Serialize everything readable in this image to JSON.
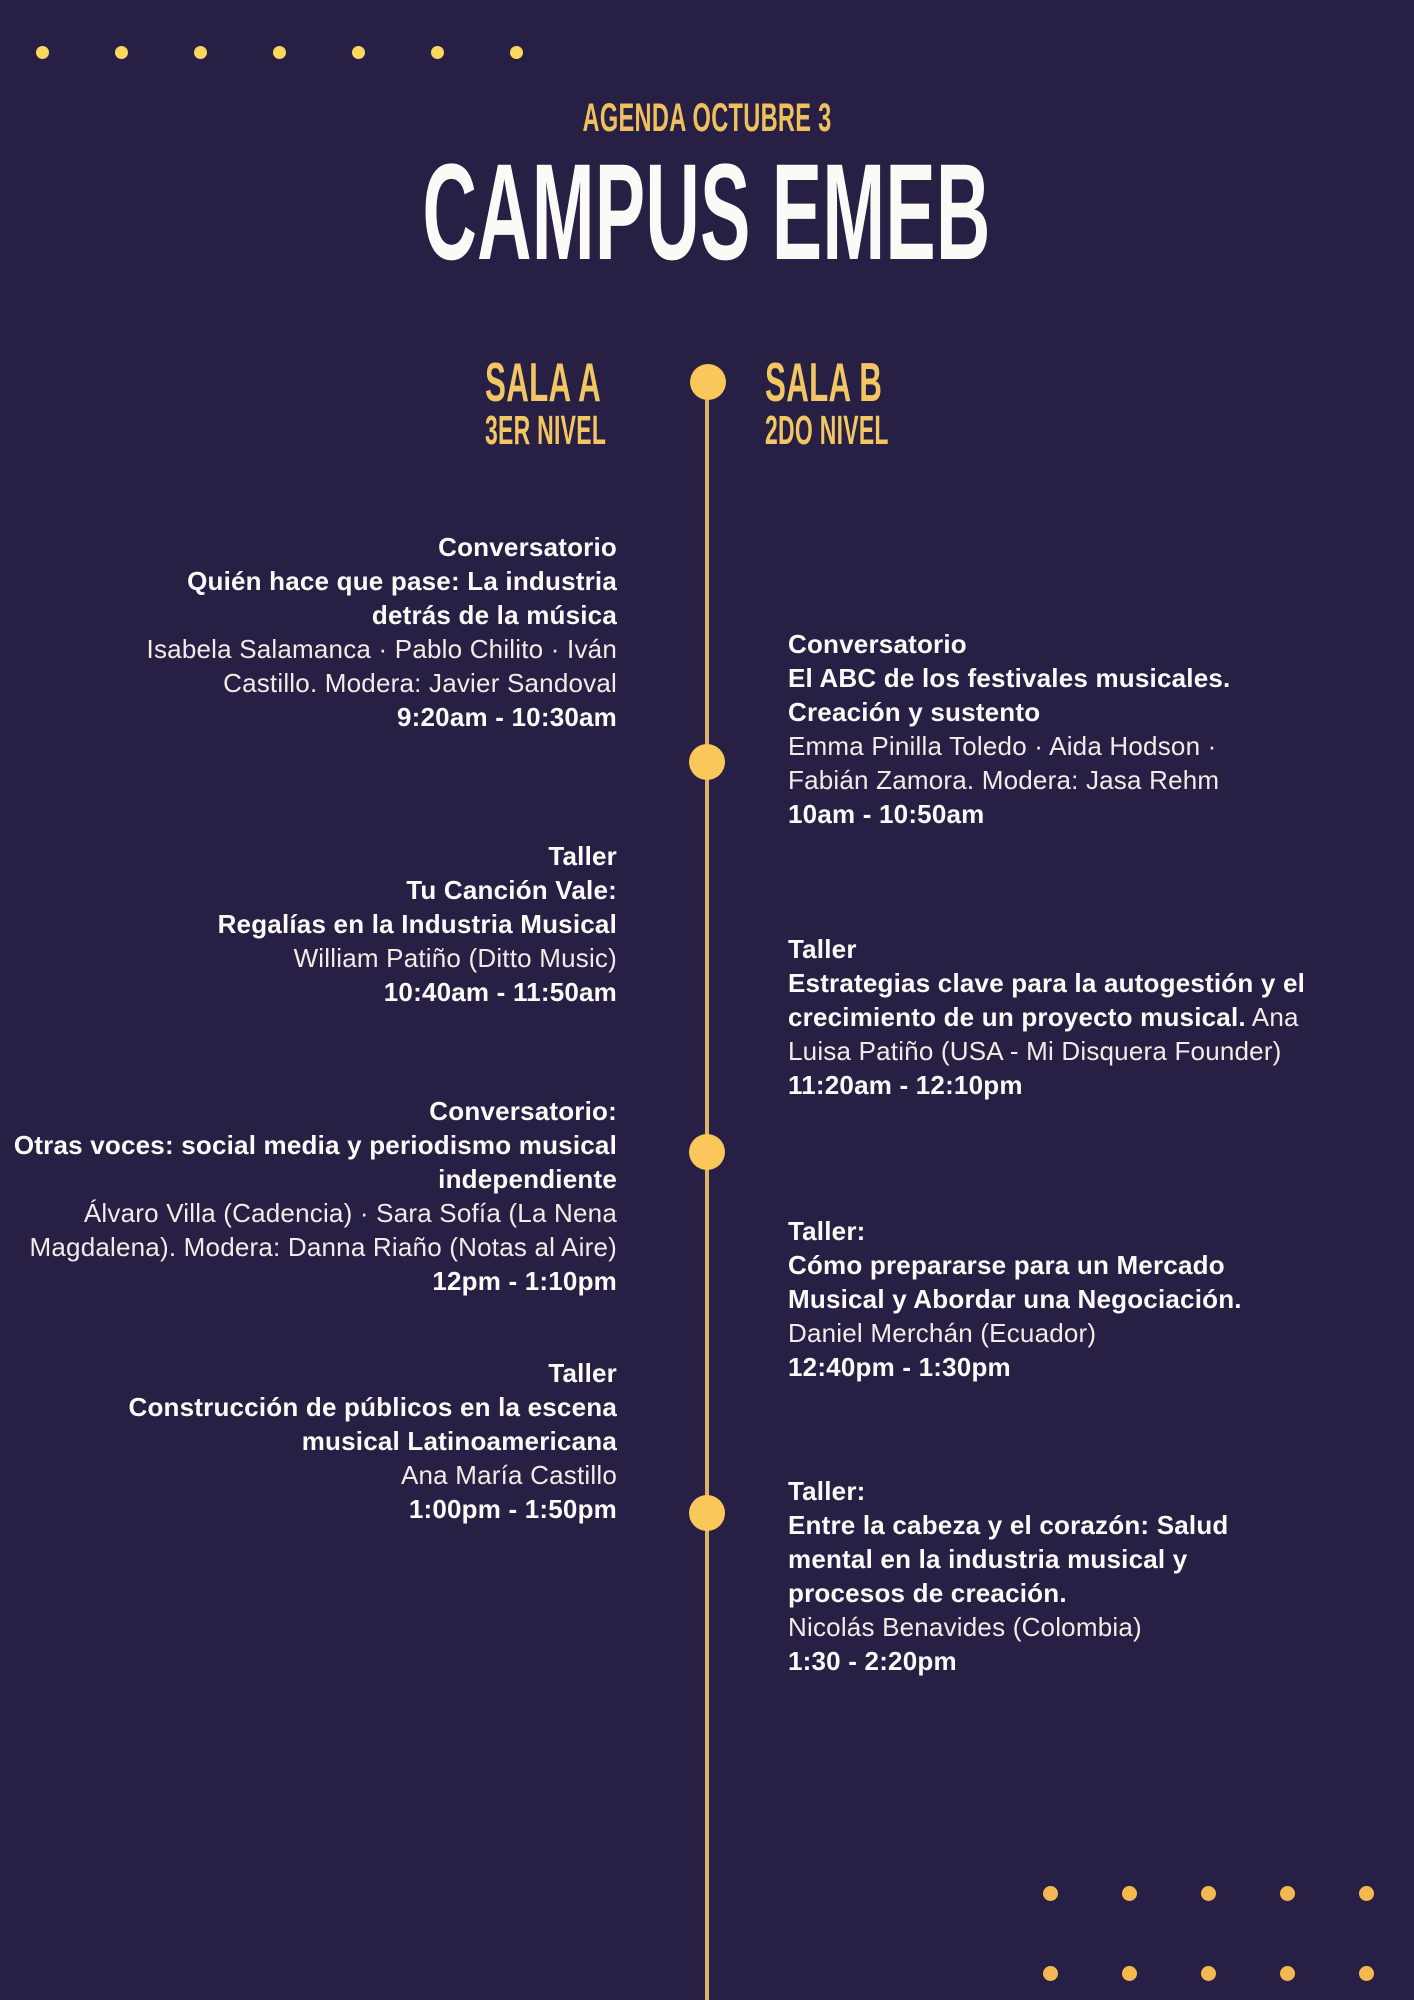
{
  "header": {
    "eyebrow": "AGENDA OCTUBRE 3",
    "title": "CAMPUS EMEB"
  },
  "columns": {
    "sala_a": {
      "name": "SALA A",
      "level": "3ER NIVEL",
      "events": [
        {
          "runs": [
            {
              "text": "Conversatorio\nQuién hace que pase: La industria\ndetrás de la música\n",
              "bold": true
            },
            {
              "text": "Isabela Salamanca · Pablo Chilito · Iván\nCastillo. Modera:  Javier Sandoval\n",
              "bold": false
            },
            {
              "text": "9:20am - 10:30am",
              "bold": true
            }
          ]
        },
        {
          "runs": [
            {
              "text": "Taller\nTu Canción Vale:\nRegalías en la Industria Musical\n",
              "bold": true
            },
            {
              "text": "William Patiño (Ditto Music)\n",
              "bold": false
            },
            {
              "text": "10:40am - 11:50am",
              "bold": true
            }
          ]
        },
        {
          "runs": [
            {
              "text": "Conversatorio:\nOtras voces: social media y periodismo musical\nindependiente\n",
              "bold": true
            },
            {
              "text": "Álvaro Villa (Cadencia) · Sara Sofía (La Nena\nMagdalena). Modera:  Danna Riaño (Notas al Aire)\n",
              "bold": false
            },
            {
              "text": "12pm - 1:10pm",
              "bold": true
            }
          ]
        },
        {
          "runs": [
            {
              "text": "Taller\nConstrucción de públicos en la escena\nmusical Latinoamericana\n",
              "bold": true
            },
            {
              "text": "Ana María Castillo\n",
              "bold": false
            },
            {
              "text": "1:00pm - 1:50pm",
              "bold": true
            }
          ]
        }
      ]
    },
    "sala_b": {
      "name": "SALA B",
      "level": "2DO NIVEL",
      "events": [
        {
          "runs": [
            {
              "text": "Conversatorio\nEl ABC de los festivales musicales.\nCreación y sustento\n",
              "bold": true
            },
            {
              "text": "Emma Pinilla Toledo · Aida Hodson ·\nFabián Zamora.  Modera: Jasa Rehm\n",
              "bold": false
            },
            {
              "text": "10am - 10:50am",
              "bold": true
            }
          ]
        },
        {
          "runs": [
            {
              "text": "Taller\nEstrategias clave para la autogestión y el\ncrecimiento de un proyecto musical.",
              "bold": true
            },
            {
              "text": " Ana\nLuisa Patiño (USA - Mi Disquera Founder)\n",
              "bold": false
            },
            {
              "text": "11:20am - 12:10pm",
              "bold": true
            }
          ]
        },
        {
          "runs": [
            {
              "text": "Taller:\nCómo prepararse para un Mercado\nMusical y Abordar una Negociación.\n",
              "bold": true
            },
            {
              "text": "Daniel Merchán (Ecuador)\n",
              "bold": false
            },
            {
              "text": "12:40pm - 1:30pm",
              "bold": true
            }
          ]
        },
        {
          "runs": [
            {
              "text": "Taller:\nEntre la cabeza y el corazón: Salud\nmental en la industria musical y\nprocesos de creación.\n",
              "bold": true
            },
            {
              "text": "Nicolás Benavides (Colombia)\n",
              "bold": false
            },
            {
              "text": "1:30 - 2:20pm",
              "bold": true
            }
          ]
        }
      ]
    }
  },
  "decor": {
    "top_dot_count": 7,
    "bottom_dot_rows": 2,
    "bottom_dots_per_row": 5
  },
  "colors": {
    "background": "#281f44",
    "heading_gold": "#eec15e",
    "room_gold": "#f2c763",
    "timeline_dot_gold": "#f9c75a",
    "timeline_line_gold": "#ddb469",
    "top_dot_gold": "#fbd75f",
    "bottom_dot_gold": "#f5b851",
    "text_white": "#f8f5f0"
  }
}
